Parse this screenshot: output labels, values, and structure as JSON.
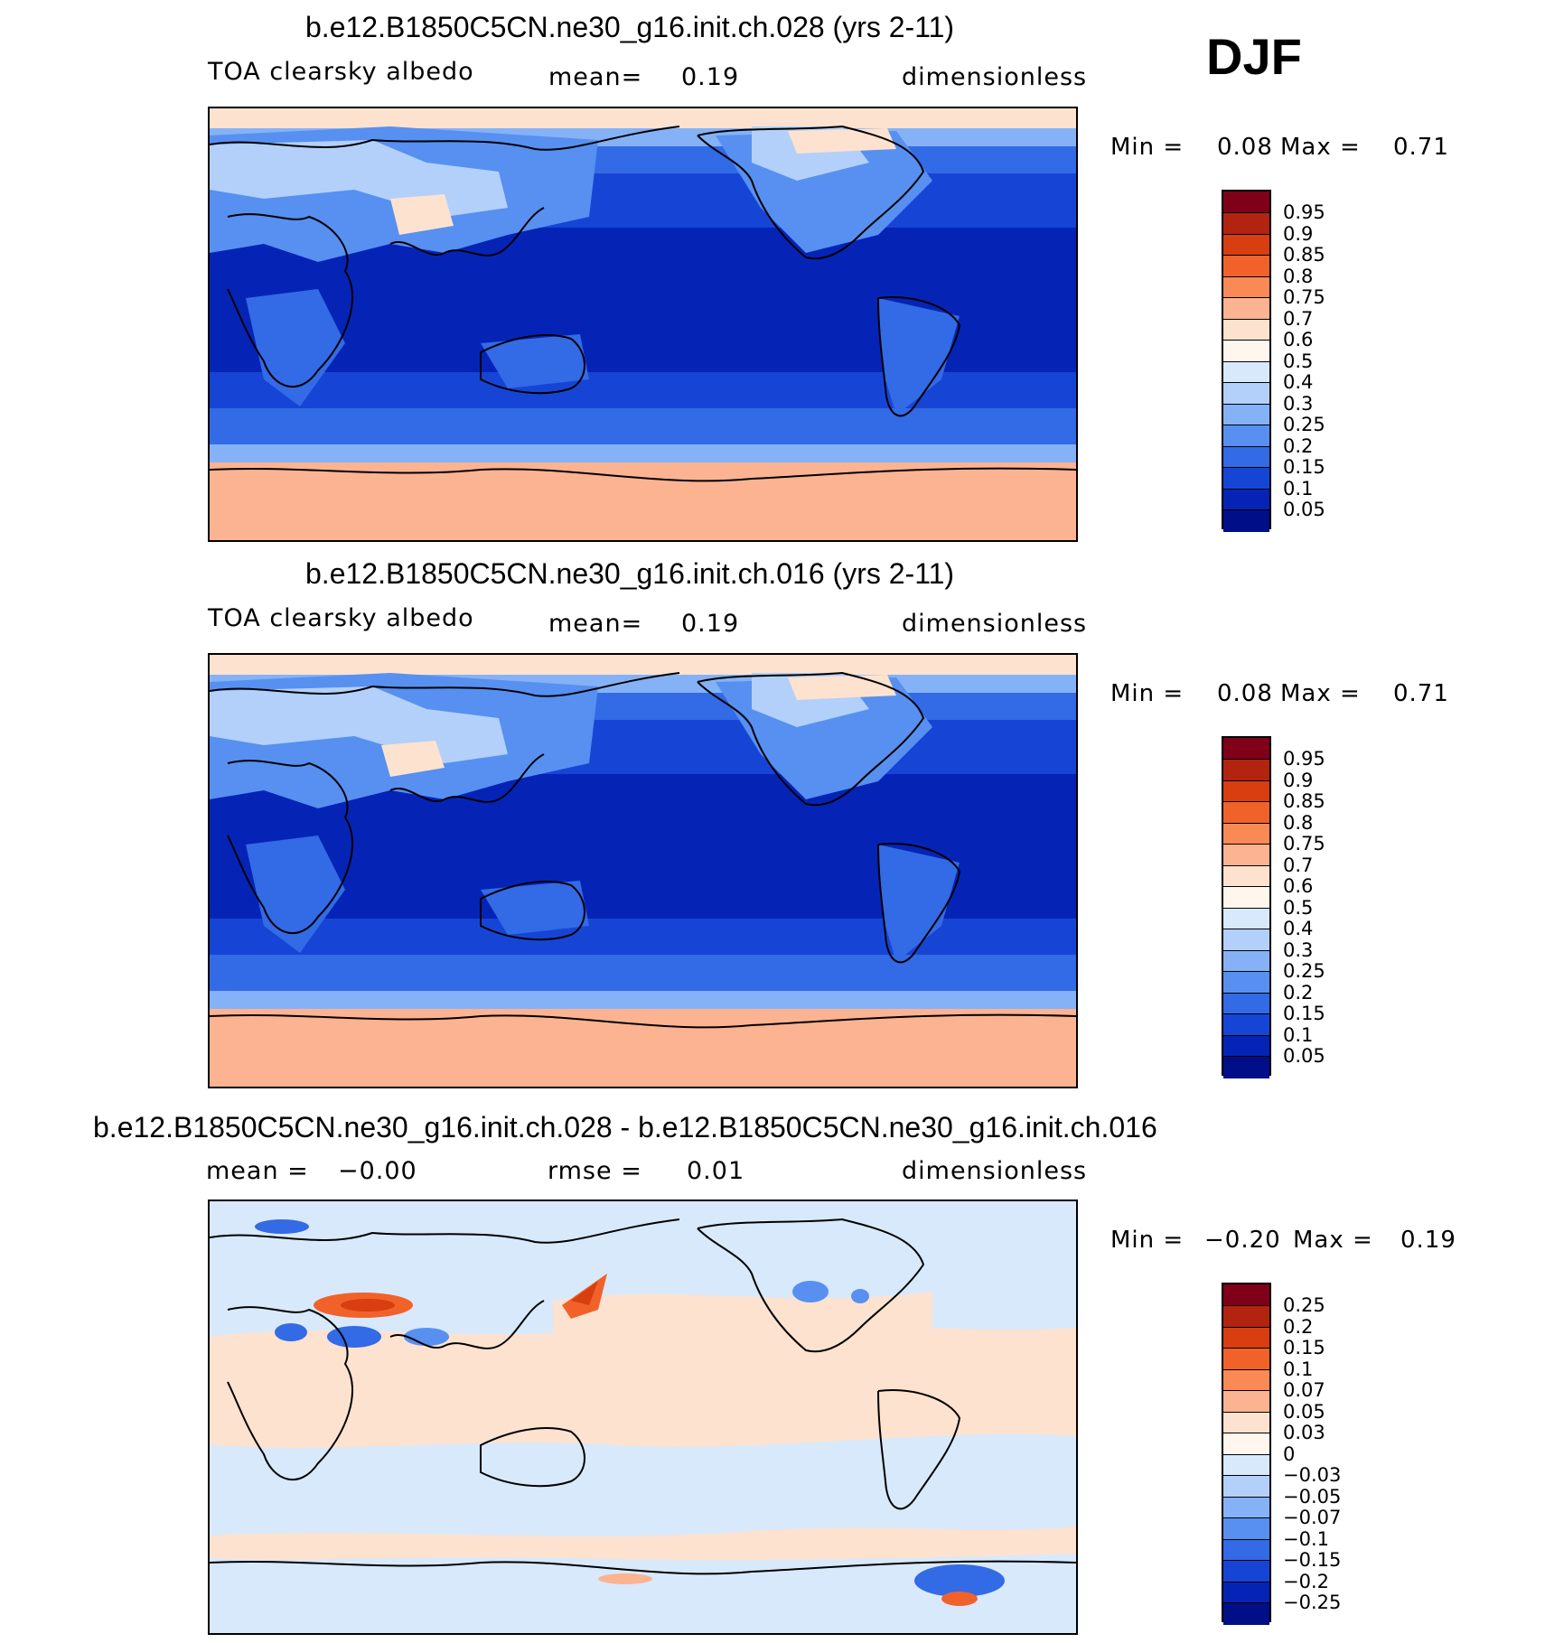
{
  "season": "DJF",
  "panels": [
    {
      "id": "case1",
      "title": "b.e12.B1850C5CN.ne30_g16.init.ch.028 (yrs 2-11)",
      "variable": "TOA clearsky albedo",
      "mean_label": "mean=",
      "mean_value": "0.19",
      "units": "dimensionless",
      "min_label": "Min =",
      "min_value": "0.08",
      "max_label": "Max =",
      "max_value": "0.71",
      "colorbar_levels": [
        "0.95",
        "0.9",
        "0.85",
        "0.8",
        "0.75",
        "0.7",
        "0.6",
        "0.5",
        "0.4",
        "0.3",
        "0.25",
        "0.2",
        "0.15",
        "0.1",
        "0.05"
      ]
    },
    {
      "id": "case2",
      "title": "b.e12.B1850C5CN.ne30_g16.init.ch.016 (yrs 2-11)",
      "variable": "TOA clearsky albedo",
      "mean_label": "mean=",
      "mean_value": "0.19",
      "units": "dimensionless",
      "min_label": "Min =",
      "min_value": "0.08",
      "max_label": "Max =",
      "max_value": "0.71",
      "colorbar_levels": [
        "0.95",
        "0.9",
        "0.85",
        "0.8",
        "0.75",
        "0.7",
        "0.6",
        "0.5",
        "0.4",
        "0.3",
        "0.25",
        "0.2",
        "0.15",
        "0.1",
        "0.05"
      ]
    },
    {
      "id": "diff",
      "title": "b.e12.B1850C5CN.ne30_g16.init.ch.028 - b.e12.B1850C5CN.ne30_g16.init.ch.016",
      "mean_label": "mean =",
      "mean_value": "−0.00",
      "rmse_label": "rmse =",
      "rmse_value": "0.01",
      "units": "dimensionless",
      "min_label": "Min =",
      "min_value": "−0.20",
      "max_label": "Max =",
      "max_value": "0.19",
      "colorbar_levels": [
        "0.25",
        "0.2",
        "0.15",
        "0.1",
        "0.07",
        "0.05",
        "0.03",
        "0",
        "−0.03",
        "−0.05",
        "−0.07",
        "−0.1",
        "−0.15",
        "−0.2",
        "−0.25"
      ]
    }
  ],
  "palettes": {
    "albedo": [
      "#80001a",
      "#b2240f",
      "#d83e10",
      "#f0622a",
      "#f98a55",
      "#fcb391",
      "#fde2cf",
      "#fff7ee",
      "#d8e9fb",
      "#b2d0fa",
      "#85b2f6",
      "#5790f0",
      "#336ae5",
      "#1645d6",
      "#0524b6",
      "#000f88"
    ],
    "diff": [
      "#80001a",
      "#b2240f",
      "#d83e10",
      "#f0622a",
      "#f98a55",
      "#fcb391",
      "#fde2cf",
      "#fff7ee",
      "#d8e9fb",
      "#b2d0fa",
      "#85b2f6",
      "#5790f0",
      "#336ae5",
      "#1645d6",
      "#0524b6",
      "#000f88"
    ]
  }
}
